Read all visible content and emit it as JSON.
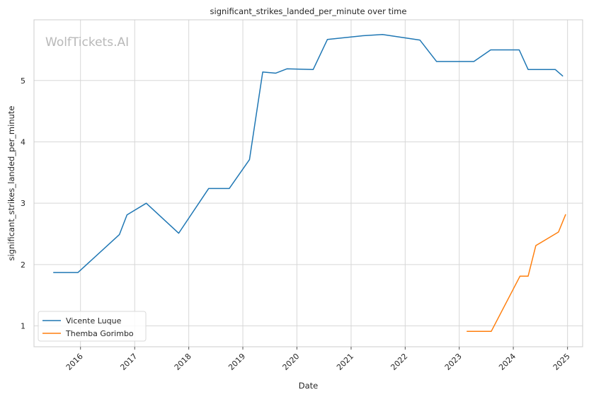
{
  "chart_data": {
    "type": "line",
    "title": "significant_strikes_landed_per_minute over time",
    "xlabel": "Date",
    "ylabel": "significant_strikes_landed_per_minute",
    "watermark": "WolfTickets.AI",
    "x_ticks": [
      "2016",
      "2017",
      "2018",
      "2019",
      "2020",
      "2021",
      "2022",
      "2023",
      "2024",
      "2025"
    ],
    "y_ticks": [
      1,
      2,
      3,
      4,
      5
    ],
    "xlim": [
      "2015-02-21",
      "2025-04-13"
    ],
    "ylim": [
      0.66,
      5.99
    ],
    "grid": true,
    "legend_position": "lower-left",
    "series": [
      {
        "name": "Vicente Luque",
        "color": "#1f77b4",
        "points": [
          [
            "2015-07-01",
            1.87
          ],
          [
            "2015-12-15",
            1.87
          ],
          [
            "2016-09-20",
            2.49
          ],
          [
            "2016-11-10",
            2.81
          ],
          [
            "2017-03-20",
            3.0
          ],
          [
            "2017-10-25",
            2.51
          ],
          [
            "2018-05-15",
            3.24
          ],
          [
            "2018-10-01",
            3.24
          ],
          [
            "2019-02-15",
            3.71
          ],
          [
            "2019-05-15",
            5.14
          ],
          [
            "2019-08-10",
            5.12
          ],
          [
            "2019-10-25",
            5.19
          ],
          [
            "2020-04-20",
            5.18
          ],
          [
            "2020-07-25",
            5.67
          ],
          [
            "2021-03-20",
            5.73
          ],
          [
            "2021-08-01",
            5.75
          ],
          [
            "2022-04-10",
            5.66
          ],
          [
            "2022-08-01",
            5.31
          ],
          [
            "2023-04-10",
            5.31
          ],
          [
            "2023-08-01",
            5.5
          ],
          [
            "2024-02-10",
            5.5
          ],
          [
            "2024-04-10",
            5.18
          ],
          [
            "2024-10-10",
            5.18
          ],
          [
            "2024-12-01",
            5.07
          ]
        ]
      },
      {
        "name": "Themba Gorimbo",
        "color": "#ff7f0e",
        "points": [
          [
            "2023-02-20",
            0.91
          ],
          [
            "2023-08-05",
            0.91
          ],
          [
            "2024-02-15",
            1.81
          ],
          [
            "2024-04-10",
            1.81
          ],
          [
            "2024-06-01",
            2.31
          ],
          [
            "2024-11-01",
            2.53
          ],
          [
            "2024-12-20",
            2.82
          ]
        ]
      }
    ]
  }
}
